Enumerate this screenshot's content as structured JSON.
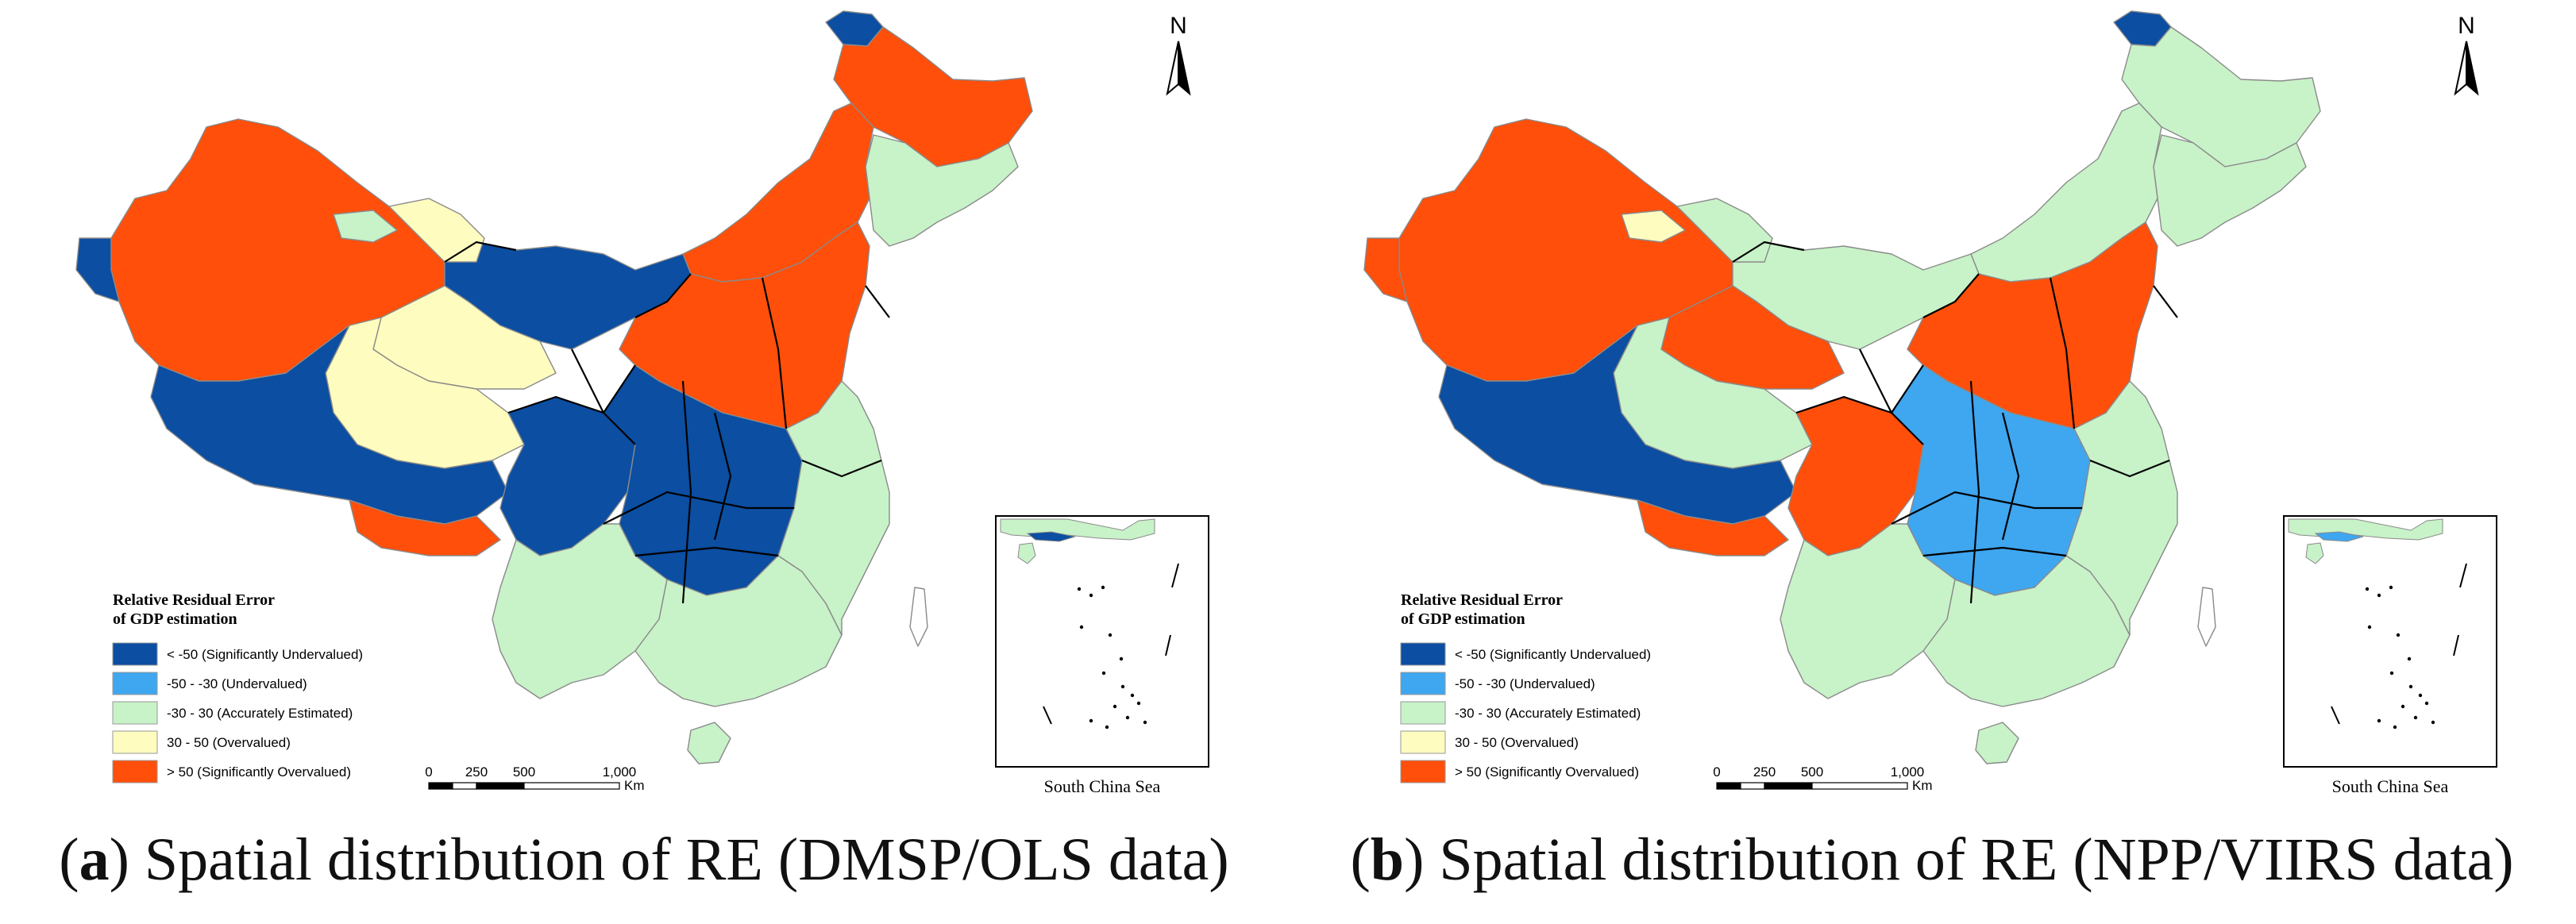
{
  "colors": {
    "sig_under": "#0b4ea2",
    "under": "#3fa6f0",
    "accurate": "#c8f2c8",
    "over": "#fffcc0",
    "sig_over": "#ff4f0a",
    "boundary": "#000000",
    "subboundary": "#8a8a8a"
  },
  "legend": {
    "title_line1": "Relative Residual Error",
    "title_line2": "of GDP estimation",
    "items": [
      {
        "label": "< -50 (Significantly Undervalued)",
        "color_key": "sig_under"
      },
      {
        "label": "-50 - -30 (Undervalued)",
        "color_key": "under"
      },
      {
        "label": "-30 - 30 (Accurately Estimated)",
        "color_key": "accurate"
      },
      {
        "label": "30 - 50 (Overvalued)",
        "color_key": "over"
      },
      {
        "label": "> 50 (Significantly Overvalued)",
        "color_key": "sig_over"
      }
    ]
  },
  "scale_bar": {
    "ticks": [
      "0",
      "250",
      "500",
      "1,000"
    ],
    "unit": "Km"
  },
  "north_arrow": {
    "label": "N",
    "icon": "north-arrow-icon"
  },
  "inset": {
    "label": "South China Sea"
  },
  "panels": [
    {
      "id": "a",
      "caption_letter": "a",
      "caption_text": "Spatial distribution of RE (DMSP/OLS data)",
      "region_classes": {
        "northeast_tip": "sig_under",
        "heilongjiang": "sig_over",
        "jilin_liaoning": "accurate",
        "inner_mongolia_east": "sig_over",
        "inner_mongolia_west": "sig_under",
        "xinjiang": "sig_over",
        "xinjiang_west_edge": "sig_under",
        "xinjiang_north_strip": "accurate",
        "xinjiang_east_patch": "over",
        "gansu_qinghai_north": "over",
        "qinghai": "over",
        "tibet": "sig_under",
        "tibet_south": "sig_over",
        "sichuan_west": "sig_under",
        "north_china": "sig_over",
        "central_china": "sig_under",
        "southwest": "accurate",
        "south_china": "accurate",
        "east_coast": "accurate",
        "hainan": "accurate",
        "taiwan": "none"
      }
    },
    {
      "id": "b",
      "caption_letter": "b",
      "caption_text": "Spatial distribution of RE (NPP/VIIRS data)",
      "region_classes": {
        "northeast_tip": "sig_under",
        "heilongjiang": "accurate",
        "jilin_liaoning": "accurate",
        "inner_mongolia_east": "accurate",
        "inner_mongolia_west": "accurate",
        "xinjiang": "sig_over",
        "xinjiang_west_edge": "sig_over",
        "xinjiang_north_strip": "over",
        "xinjiang_east_patch": "accurate",
        "gansu_qinghai_north": "sig_over",
        "qinghai": "accurate",
        "tibet": "sig_under",
        "tibet_south": "sig_over",
        "sichuan_west": "sig_over",
        "north_china": "sig_over",
        "central_china": "under",
        "southwest": "accurate",
        "south_china": "accurate",
        "east_coast": "accurate",
        "hainan": "accurate",
        "taiwan": "none"
      }
    }
  ]
}
